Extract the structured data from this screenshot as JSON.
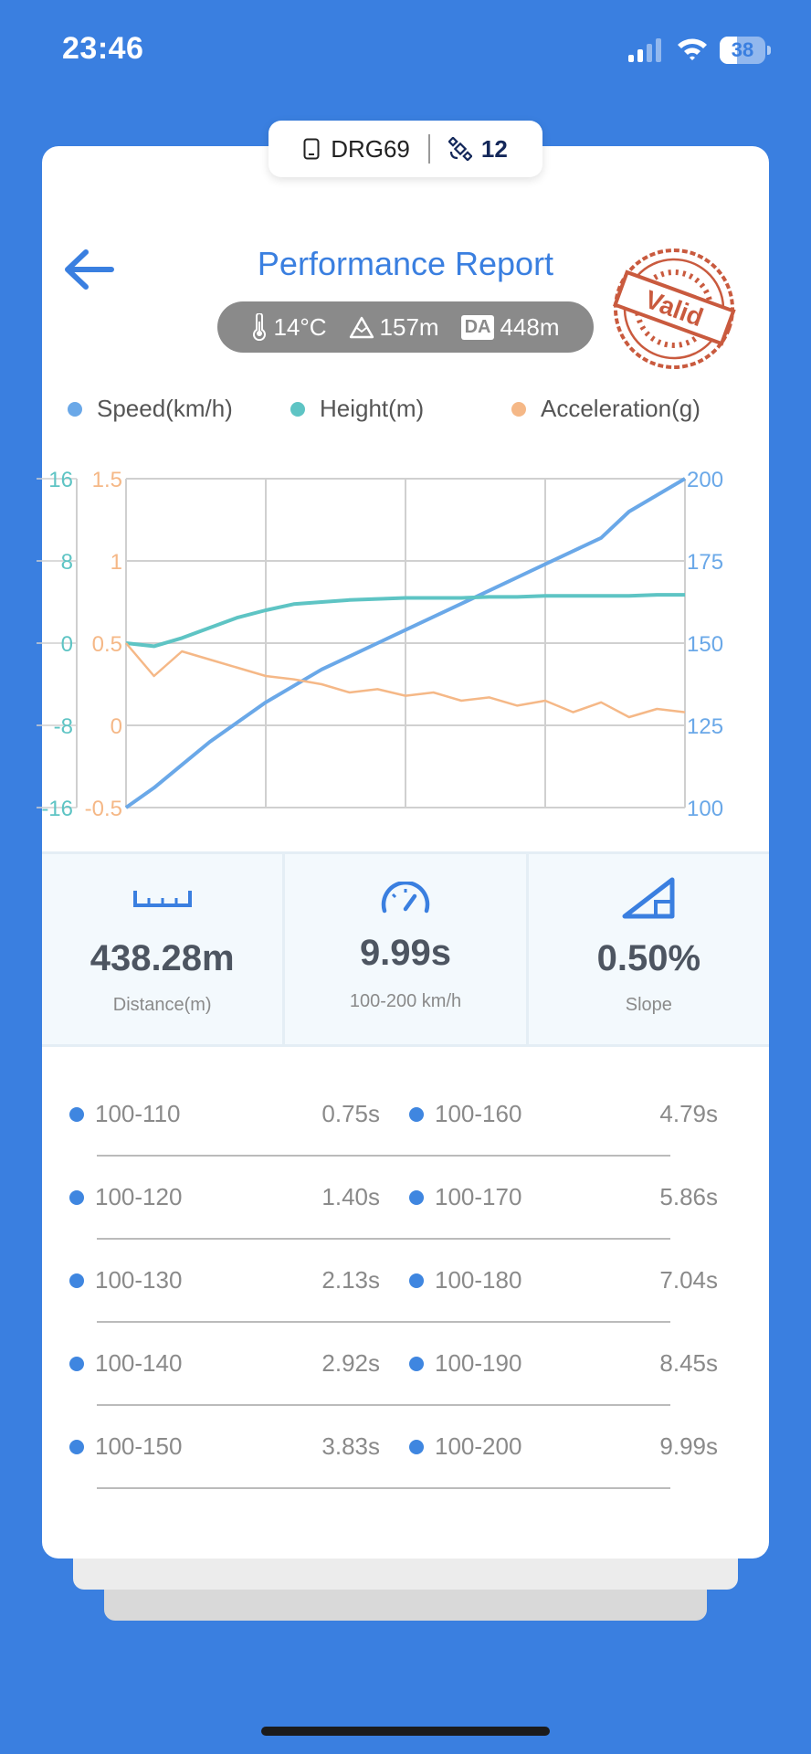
{
  "status_bar": {
    "time": "23:46",
    "battery": "38"
  },
  "device": {
    "name": "DRG69",
    "satellites": "12"
  },
  "header": {
    "title": "Performance Report",
    "stamp": "Valid"
  },
  "conditions": {
    "temperature": "14°C",
    "altitude": "157m",
    "da_label": "DA",
    "density_altitude": "448m"
  },
  "legend": [
    {
      "label": "Speed(km/h)",
      "color": "#6aa8e8"
    },
    {
      "label": "Height(m)",
      "color": "#5ec4c4"
    },
    {
      "label": "Acceleration(g)",
      "color": "#f5b887"
    }
  ],
  "chart_data": {
    "type": "line",
    "left_axis_height": {
      "label": "",
      "ticks": [
        "16",
        "8",
        "0",
        "-8",
        "-16"
      ],
      "ylim": [
        -16,
        16
      ],
      "color": "#5ec4c4"
    },
    "left_axis_acceleration": {
      "label": "",
      "ticks": [
        "1.5",
        "1",
        "0.5",
        "0",
        "-0.5"
      ],
      "ylim": [
        -0.5,
        1.5
      ],
      "color": "#f5b887"
    },
    "right_axis_speed": {
      "label": "",
      "ticks": [
        "200",
        "175",
        "150",
        "125",
        "100"
      ],
      "ylim": [
        100,
        200
      ],
      "color": "#6aa8e8"
    },
    "x": [
      0,
      0.5,
      1,
      1.5,
      2,
      2.5,
      3,
      3.5,
      4,
      4.5,
      5,
      5.5,
      6,
      6.5,
      7,
      7.5,
      8,
      8.5,
      9,
      9.5,
      10
    ],
    "series": [
      {
        "name": "Speed(km/h)",
        "values": [
          100,
          106,
          113,
          120,
          126,
          132,
          137,
          142,
          146,
          150,
          154,
          158,
          162,
          166,
          170,
          174,
          178,
          182,
          190,
          195,
          200
        ],
        "color": "#6aa8e8"
      },
      {
        "name": "Height(m)",
        "values": [
          0,
          -0.3,
          0.5,
          1.5,
          2.5,
          3.2,
          3.8,
          4.0,
          4.2,
          4.3,
          4.4,
          4.4,
          4.4,
          4.5,
          4.5,
          4.6,
          4.6,
          4.6,
          4.6,
          4.7,
          4.7
        ],
        "color": "#5ec4c4"
      },
      {
        "name": "Acceleration(g)",
        "values": [
          0.5,
          0.3,
          0.45,
          0.4,
          0.35,
          0.3,
          0.28,
          0.25,
          0.2,
          0.22,
          0.18,
          0.2,
          0.15,
          0.17,
          0.12,
          0.15,
          0.08,
          0.14,
          0.05,
          0.1,
          0.08
        ],
        "color": "#f5b887"
      }
    ],
    "grid": true
  },
  "stats": [
    {
      "value": "438.28m",
      "label": "Distance(m)",
      "icon": "ruler-icon"
    },
    {
      "value": "9.99s",
      "label": "100-200 km/h",
      "icon": "speedometer-icon"
    },
    {
      "value": "0.50%",
      "label": "Slope",
      "icon": "slope-icon"
    }
  ],
  "splits": [
    {
      "left": {
        "range": "100-110",
        "time": "0.75s"
      },
      "right": {
        "range": "100-160",
        "time": "4.79s"
      }
    },
    {
      "left": {
        "range": "100-120",
        "time": "1.40s"
      },
      "right": {
        "range": "100-170",
        "time": "5.86s"
      }
    },
    {
      "left": {
        "range": "100-130",
        "time": "2.13s"
      },
      "right": {
        "range": "100-180",
        "time": "7.04s"
      }
    },
    {
      "left": {
        "range": "100-140",
        "time": "2.92s"
      },
      "right": {
        "range": "100-190",
        "time": "8.45s"
      }
    },
    {
      "left": {
        "range": "100-150",
        "time": "3.83s"
      },
      "right": {
        "range": "100-200",
        "time": "9.99s"
      }
    }
  ]
}
